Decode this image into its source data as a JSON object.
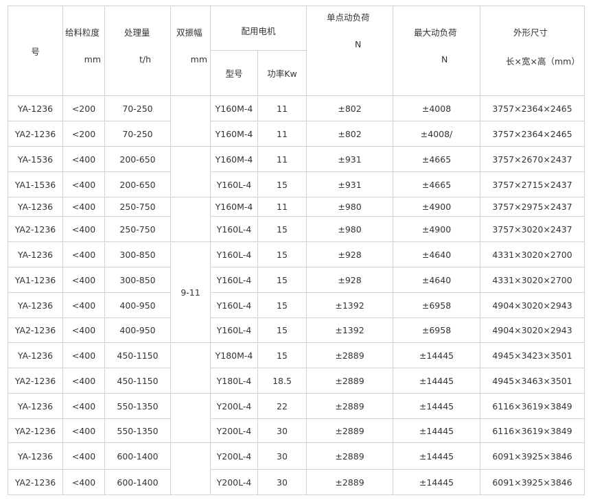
{
  "header": {
    "model": "号",
    "feed_size": "给料粒度",
    "feed_size_unit": "mm",
    "capacity": "处理量",
    "capacity_unit": "t/h",
    "amplitude": "双振幅",
    "amplitude_unit": "mm",
    "motor": "配用电机",
    "motor_type": "型号",
    "motor_power": "功率Kw",
    "single_load": "单点动负荷",
    "single_load_unit": "N",
    "max_load": "最大动负荷",
    "max_load_unit": "N",
    "dimensions": "外形尺寸",
    "dimensions_unit": "长×宽×高（mm）"
  },
  "amplitude_groups": [
    {
      "rows": 2,
      "value": ""
    },
    {
      "rows": 2,
      "value": ""
    },
    {
      "rows": 2,
      "value": ""
    },
    {
      "rows": 4,
      "value": "9-11"
    },
    {
      "rows": 2,
      "value": ""
    },
    {
      "rows": 2,
      "value": ""
    },
    {
      "rows": 2,
      "value": ""
    }
  ],
  "rows": [
    [
      "YA-1236",
      "<200",
      "70-250",
      "Y160M-4",
      "11",
      "±802",
      "±4008",
      "3757×2364×2465"
    ],
    [
      "YA2-1236",
      "<200",
      "70-250",
      "Y160M-4",
      "11",
      "±802",
      "±4008/",
      "3757×2364×2465"
    ],
    [
      "YA-1536",
      "<400",
      "200-650",
      "Y160M-4",
      "11",
      "±931",
      "±4665",
      "3757×2670×2437"
    ],
    [
      "YA1-1536",
      "<400",
      "200-650",
      "Y160L-4",
      "15",
      "±931",
      "±4665",
      "3757×2715×2437"
    ],
    [
      "YA-1236",
      "<400",
      "250-750",
      "Y160M-4",
      "11",
      "±980",
      "±4900",
      "3757×2975×2437"
    ],
    [
      "YA2-1236",
      "<400",
      "250-750",
      "Y160L-4",
      "15",
      "±980",
      "±4900",
      "3757×3020×2437"
    ],
    [
      "YA-1236",
      "<400",
      "300-850",
      "Y160L-4",
      "15",
      "±928",
      "±4640",
      "4331×3020×2700"
    ],
    [
      "YA1-1236",
      "<400",
      "300-850",
      "Y160L-4",
      "15",
      "±928",
      "±4640",
      "4331×3020×2700"
    ],
    [
      "YA-1236",
      "<400",
      "400-950",
      "Y160L-4",
      "15",
      "±1392",
      "±6958",
      "4904×3020×2943"
    ],
    [
      "YA2-1236",
      "<400",
      "400-950",
      "Y160L-4",
      "15",
      "±1392",
      "±6958",
      "4904×3020×2943"
    ],
    [
      "YA-1236",
      "<400",
      "450-1150",
      "Y180M-4",
      "15",
      "±2889",
      "±14445",
      "4945×3423×3501"
    ],
    [
      "YA2-1236",
      "<400",
      "450-1150",
      "Y180L-4",
      "18.5",
      "±2889",
      "±14445",
      "4945×3463×3501"
    ],
    [
      "YA-1236",
      "<400",
      "550-1350",
      "Y200L-4",
      "22",
      "±2889",
      "±14445",
      "6116×3619×3849"
    ],
    [
      "YA2-1236",
      "<400",
      "550-1350",
      "Y200L-4",
      "30",
      "±2889",
      "±14445",
      "6116×3619×3849"
    ],
    [
      "YA-1236",
      "<400",
      "600-1400",
      "Y200L-4",
      "30",
      "±2889",
      "±14445",
      "6091×3925×3846"
    ],
    [
      "YA2-1236",
      "<400",
      "600-1400",
      "Y200L-4",
      "30",
      "±2889",
      "±14445",
      "6091×3925×3846"
    ]
  ]
}
